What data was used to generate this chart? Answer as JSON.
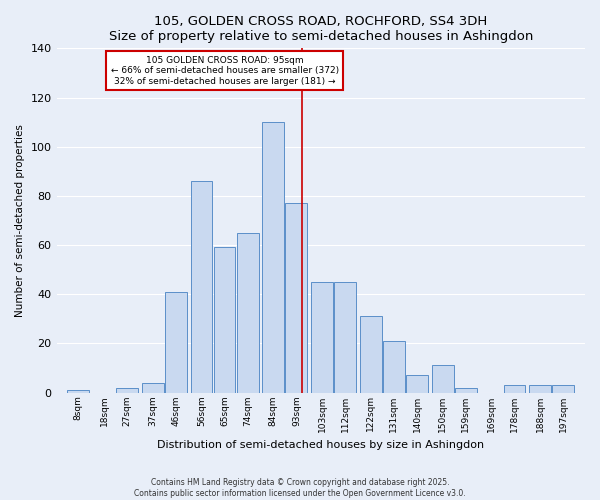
{
  "title": "105, GOLDEN CROSS ROAD, ROCHFORD, SS4 3DH",
  "subtitle": "Size of property relative to semi-detached houses in Ashingdon",
  "xlabel": "Distribution of semi-detached houses by size in Ashingdon",
  "ylabel": "Number of semi-detached properties",
  "bar_labels": [
    "8sqm",
    "18sqm",
    "27sqm",
    "37sqm",
    "46sqm",
    "56sqm",
    "65sqm",
    "74sqm",
    "84sqm",
    "93sqm",
    "103sqm",
    "112sqm",
    "122sqm",
    "131sqm",
    "140sqm",
    "150sqm",
    "159sqm",
    "169sqm",
    "178sqm",
    "188sqm",
    "197sqm"
  ],
  "bar_values": [
    1,
    0,
    2,
    4,
    41,
    86,
    59,
    65,
    110,
    77,
    45,
    45,
    31,
    21,
    7,
    11,
    2,
    0,
    3,
    3,
    3
  ],
  "bar_color": "#c9d9f0",
  "bar_edge_color": "#5b8fc9",
  "background_color": "#e8eef8",
  "grid_color": "#ffffff",
  "property_sqm": 95,
  "property_label": "105 GOLDEN CROSS ROAD: 95sqm",
  "annotation_line1": "← 66% of semi-detached houses are smaller (372)",
  "annotation_line2": "32% of semi-detached houses are larger (181) →",
  "vline_color": "#cc0000",
  "annotation_box_facecolor": "#ffffff",
  "annotation_box_edgecolor": "#cc0000",
  "ylim_max": 140,
  "yticks": [
    0,
    20,
    40,
    60,
    80,
    100,
    120,
    140
  ],
  "footer1": "Contains HM Land Registry data © Crown copyright and database right 2025.",
  "footer2": "Contains public sector information licensed under the Open Government Licence v3.0."
}
